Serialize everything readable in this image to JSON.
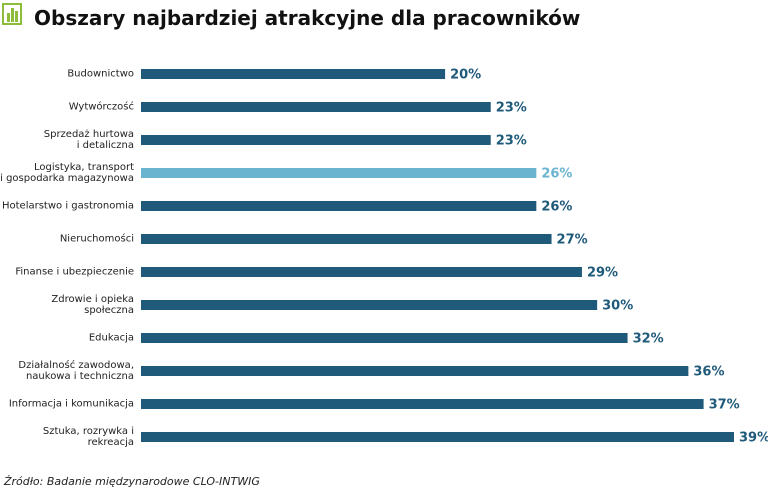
{
  "chart_data": {
    "type": "bar",
    "title": "Obszary najbardziej atrakcyjne dla pracowników",
    "categories": [
      "Budownictwo",
      "Wytwórczość",
      "Sprzedaż hurtowa\ni detaliczna",
      "Logistyka, transport\ni gospodarka magazynowa",
      "Hotelarstwo i gastronomia",
      "Nieruchomości",
      "Finanse i ubezpieczenie",
      "Zdrowie i opieka społeczna",
      "Edukacja",
      "Działalność zawodowa,\nnaukowa i techniczna",
      "Informacja i komunikacja",
      "Sztuka, rozrywka i rekreacja"
    ],
    "values": [
      20,
      23,
      23,
      26,
      26,
      27,
      29,
      30,
      32,
      36,
      37,
      39
    ],
    "value_labels": [
      "20%",
      "23%",
      "23%",
      "26%",
      "26%",
      "27%",
      "29%",
      "30%",
      "32%",
      "36%",
      "37%",
      "39%"
    ],
    "colors": [
      "#1f5a7a",
      "#1f5a7a",
      "#1f5a7a",
      "#6ab4cf",
      "#1f5a7a",
      "#1f5a7a",
      "#1f5a7a",
      "#1f5a7a",
      "#1f5a7a",
      "#1f5a7a",
      "#1f5a7a",
      "#1f5a7a"
    ],
    "source": "Źródło: Badanie międzynarodowe CLO-INTWIG"
  }
}
